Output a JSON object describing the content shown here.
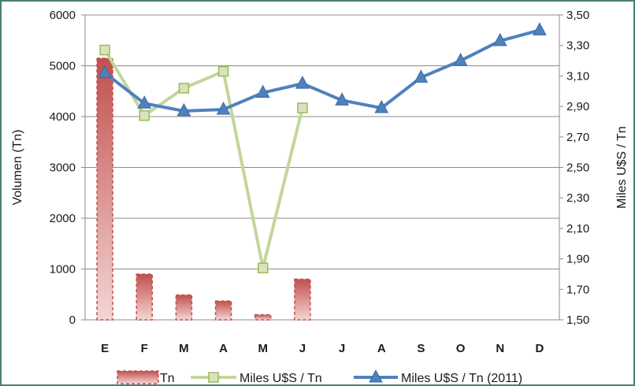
{
  "chart_data": {
    "type": "bar",
    "categories": [
      "E",
      "F",
      "M",
      "A",
      "M",
      "J",
      "J",
      "A",
      "S",
      "O",
      "N",
      "D"
    ],
    "series": [
      {
        "name": "Tn",
        "kind": "bar",
        "axis": "left",
        "color": "#c0504d",
        "values": [
          5150,
          900,
          490,
          370,
          100,
          800,
          null,
          null,
          null,
          null,
          null,
          null
        ]
      },
      {
        "name": "Miles U$S / Tn",
        "kind": "line",
        "axis": "right",
        "color": "#c3d69b",
        "marker": "square",
        "values": [
          3.27,
          2.84,
          3.02,
          3.13,
          1.84,
          2.89,
          null,
          null,
          null,
          null,
          null,
          null
        ]
      },
      {
        "name": "Miles U$S / Tn (2011)",
        "kind": "line",
        "axis": "right",
        "color": "#4f81bd",
        "marker": "triangle",
        "values": [
          3.12,
          2.92,
          2.87,
          2.88,
          2.99,
          3.05,
          2.94,
          2.89,
          3.09,
          3.2,
          3.33,
          3.4
        ]
      }
    ],
    "ylabel": "Volumen (Tn)",
    "y2label": "Miles U$S / Tn",
    "ylim": [
      0,
      6000
    ],
    "y2lim": [
      1.5,
      3.5
    ],
    "yticks": [
      "0",
      "1000",
      "2000",
      "3000",
      "4000",
      "5000",
      "6000"
    ],
    "y2ticks": [
      "1,50",
      "1,70",
      "1,90",
      "2,10",
      "2,30",
      "2,50",
      "2,70",
      "2,90",
      "3,10",
      "3,30",
      "3,50"
    ],
    "grid": true,
    "legend_position": "bottom"
  }
}
